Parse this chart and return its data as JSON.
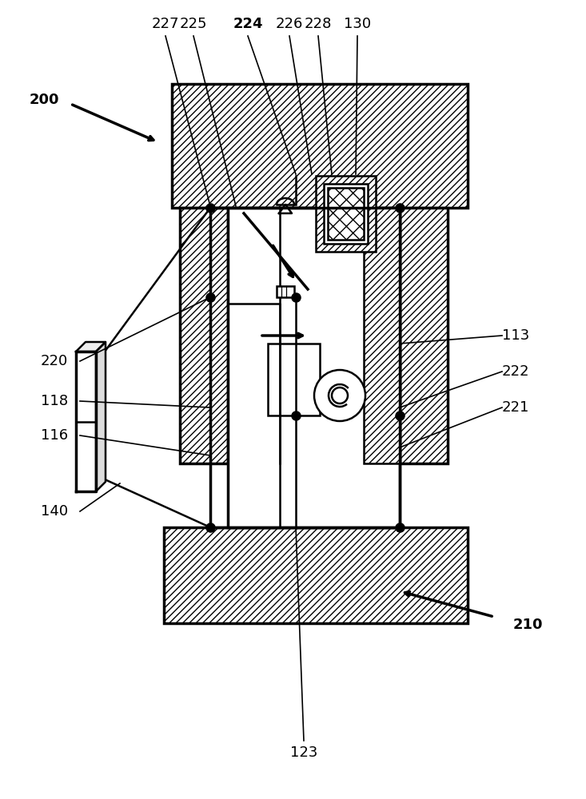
{
  "bg_color": "#ffffff",
  "line_color": "#000000",
  "fig_width": 7.33,
  "fig_height": 10.0,
  "labels_config": [
    [
      "200",
      55,
      875,
      true
    ],
    [
      "227",
      207,
      970,
      false
    ],
    [
      "225",
      242,
      970,
      false
    ],
    [
      "224",
      310,
      970,
      true
    ],
    [
      "226",
      362,
      970,
      false
    ],
    [
      "228",
      398,
      970,
      false
    ],
    [
      "130",
      447,
      970,
      false
    ],
    [
      "113",
      645,
      580,
      false
    ],
    [
      "222",
      645,
      535,
      false
    ],
    [
      "221",
      645,
      490,
      false
    ],
    [
      "220",
      68,
      548,
      false
    ],
    [
      "118",
      68,
      498,
      false
    ],
    [
      "116",
      68,
      455,
      false
    ],
    [
      "140",
      68,
      360,
      false
    ],
    [
      "210",
      660,
      218,
      true
    ],
    [
      "123",
      380,
      58,
      false
    ]
  ]
}
